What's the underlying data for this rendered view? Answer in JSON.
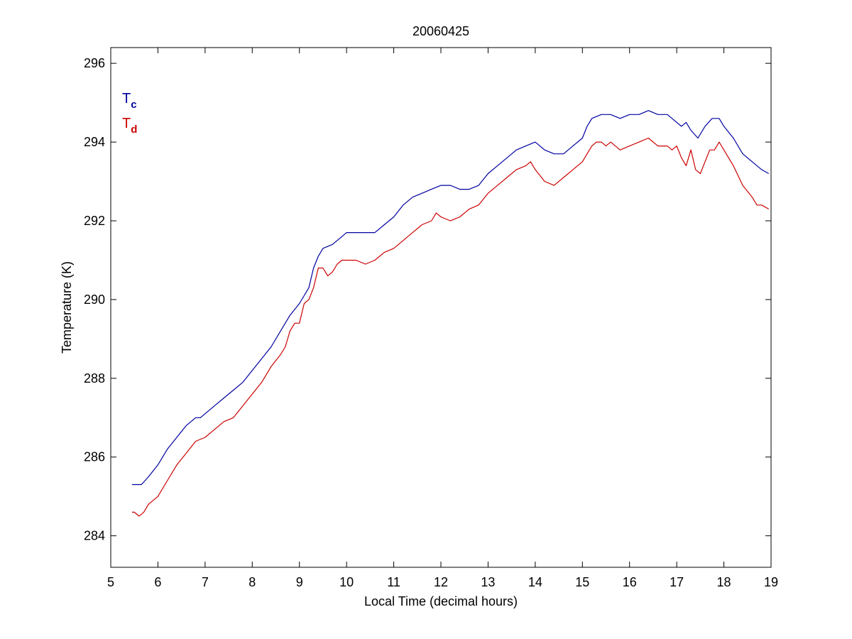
{
  "chart_data": {
    "type": "line",
    "title": "20060425",
    "xlabel": "Local Time (decimal hours)",
    "ylabel": "Temperature (K)",
    "xlim": [
      5,
      19
    ],
    "ylim": [
      283.2,
      296.4
    ],
    "xticks": [
      5,
      6,
      7,
      8,
      9,
      10,
      11,
      12,
      13,
      14,
      15,
      16,
      17,
      18,
      19
    ],
    "yticks": [
      284,
      286,
      288,
      290,
      292,
      294,
      296
    ],
    "xtick_labels": [
      "5",
      "6",
      "7",
      "8",
      "9",
      "10",
      "11",
      "12",
      "13",
      "14",
      "15",
      "16",
      "17",
      "18",
      "19"
    ],
    "ytick_labels": [
      "284",
      "286",
      "288",
      "290",
      "292",
      "294",
      "296"
    ],
    "grid": false,
    "legend_position": "top-left",
    "series": [
      {
        "key": "tc",
        "name": "T",
        "subscript": "c",
        "color": "#0000a0",
        "x": [
          5.45,
          5.5,
          5.65,
          5.8,
          6.0,
          6.2,
          6.4,
          6.6,
          6.8,
          6.9,
          7.0,
          7.2,
          7.4,
          7.6,
          7.8,
          8.0,
          8.2,
          8.4,
          8.6,
          8.8,
          9.0,
          9.2,
          9.3,
          9.4,
          9.5,
          9.7,
          9.9,
          10.0,
          10.2,
          10.4,
          10.6,
          10.8,
          11.0,
          11.2,
          11.4,
          11.6,
          11.8,
          12.0,
          12.2,
          12.4,
          12.6,
          12.8,
          13.0,
          13.2,
          13.4,
          13.6,
          13.8,
          14.0,
          14.2,
          14.4,
          14.6,
          14.8,
          15.0,
          15.1,
          15.2,
          15.4,
          15.6,
          15.8,
          16.0,
          16.2,
          16.4,
          16.6,
          16.8,
          16.9,
          17.0,
          17.1,
          17.2,
          17.3,
          17.45,
          17.6,
          17.75,
          17.9,
          18.0,
          18.2,
          18.4,
          18.6,
          18.8,
          18.95
        ],
        "y": [
          285.3,
          285.3,
          285.3,
          285.5,
          285.8,
          286.2,
          286.5,
          286.8,
          287.0,
          287.0,
          287.1,
          287.3,
          287.5,
          287.7,
          287.9,
          288.2,
          288.5,
          288.8,
          289.2,
          289.6,
          289.9,
          290.3,
          290.8,
          291.1,
          291.3,
          291.4,
          291.6,
          291.7,
          291.7,
          291.7,
          291.7,
          291.9,
          292.1,
          292.4,
          292.6,
          292.7,
          292.8,
          292.9,
          292.9,
          292.8,
          292.8,
          292.9,
          293.2,
          293.4,
          293.6,
          293.8,
          293.9,
          294.0,
          293.8,
          293.7,
          293.7,
          293.9,
          294.1,
          294.4,
          294.6,
          294.7,
          294.7,
          294.6,
          294.7,
          294.7,
          294.8,
          294.7,
          294.7,
          294.6,
          294.5,
          294.4,
          294.5,
          294.3,
          294.1,
          294.4,
          294.6,
          294.6,
          294.4,
          294.1,
          293.7,
          293.5,
          293.3,
          293.2
        ]
      },
      {
        "key": "td",
        "name": "T",
        "subscript": "d",
        "color": "#cc0000",
        "x": [
          5.45,
          5.5,
          5.6,
          5.7,
          5.8,
          6.0,
          6.2,
          6.4,
          6.6,
          6.8,
          7.0,
          7.2,
          7.4,
          7.6,
          7.8,
          8.0,
          8.2,
          8.4,
          8.6,
          8.7,
          8.8,
          8.9,
          9.0,
          9.1,
          9.2,
          9.3,
          9.4,
          9.5,
          9.6,
          9.7,
          9.8,
          9.9,
          10.0,
          10.2,
          10.4,
          10.6,
          10.8,
          11.0,
          11.2,
          11.4,
          11.6,
          11.8,
          11.9,
          12.0,
          12.2,
          12.4,
          12.6,
          12.8,
          13.0,
          13.2,
          13.4,
          13.6,
          13.8,
          13.9,
          14.0,
          14.2,
          14.4,
          14.6,
          14.8,
          15.0,
          15.1,
          15.2,
          15.3,
          15.4,
          15.5,
          15.6,
          15.8,
          16.0,
          16.2,
          16.4,
          16.6,
          16.8,
          16.9,
          17.0,
          17.1,
          17.2,
          17.3,
          17.4,
          17.5,
          17.6,
          17.7,
          17.8,
          17.9,
          18.0,
          18.2,
          18.4,
          18.6,
          18.7,
          18.8,
          18.95
        ],
        "y": [
          284.6,
          284.6,
          284.5,
          284.6,
          284.8,
          285.0,
          285.4,
          285.8,
          286.1,
          286.4,
          286.5,
          286.7,
          286.9,
          287.0,
          287.3,
          287.6,
          287.9,
          288.3,
          288.6,
          288.8,
          289.2,
          289.4,
          289.4,
          289.9,
          290.0,
          290.3,
          290.8,
          290.8,
          290.6,
          290.7,
          290.9,
          291.0,
          291.0,
          291.0,
          290.9,
          291.0,
          291.2,
          291.3,
          291.5,
          291.7,
          291.9,
          292.0,
          292.2,
          292.1,
          292.0,
          292.1,
          292.3,
          292.4,
          292.7,
          292.9,
          293.1,
          293.3,
          293.4,
          293.5,
          293.3,
          293.0,
          292.9,
          293.1,
          293.3,
          293.5,
          293.7,
          293.9,
          294.0,
          294.0,
          293.9,
          294.0,
          293.8,
          293.9,
          294.0,
          294.1,
          293.9,
          293.9,
          293.8,
          293.9,
          293.6,
          293.4,
          293.8,
          293.3,
          293.2,
          293.5,
          293.8,
          293.8,
          294.0,
          293.8,
          293.4,
          292.9,
          292.6,
          292.4,
          292.4,
          292.3
        ]
      }
    ]
  }
}
